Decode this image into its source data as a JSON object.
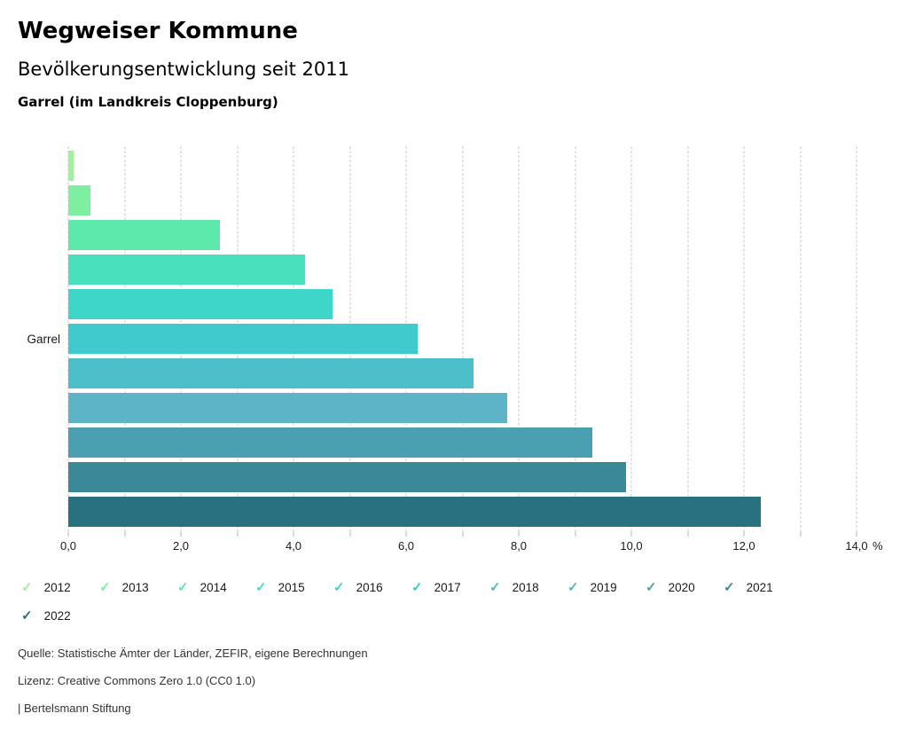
{
  "header": {
    "title": "Wegweiser Kommune",
    "subtitle": "Bevölkerungsentwicklung seit 2011",
    "region": "Garrel (im Landkreis Cloppenburg)"
  },
  "chart_data": {
    "type": "bar",
    "orientation": "horizontal",
    "category_label": "Garrel",
    "unit": "%",
    "grid": true,
    "legend_position": "bottom",
    "axis": {
      "min": 0,
      "max": 14,
      "grid_step": 1,
      "label_step": 2,
      "tick_labels": [
        "0,0",
        "2,0",
        "4,0",
        "6,0",
        "8,0",
        "10,0",
        "12,0",
        "14,0"
      ]
    },
    "series": [
      {
        "year": "2012",
        "value": 0.1,
        "color": "#a1f19b"
      },
      {
        "year": "2013",
        "value": 0.4,
        "color": "#7eef9f"
      },
      {
        "year": "2014",
        "value": 2.7,
        "color": "#5de9ac"
      },
      {
        "year": "2015",
        "value": 4.2,
        "color": "#49e0bd"
      },
      {
        "year": "2016",
        "value": 4.7,
        "color": "#3ed6c8"
      },
      {
        "year": "2017",
        "value": 6.2,
        "color": "#41cacd"
      },
      {
        "year": "2018",
        "value": 7.2,
        "color": "#4bc0cb"
      },
      {
        "year": "2019",
        "value": 7.8,
        "color": "#5db4c6"
      },
      {
        "year": "2020",
        "value": 9.3,
        "color": "#4a9fb1"
      },
      {
        "year": "2021",
        "value": 9.9,
        "color": "#3a8998"
      },
      {
        "year": "2022",
        "value": 12.3,
        "color": "#297180"
      }
    ]
  },
  "footer": {
    "source": "Quelle: Statistische Ämter der Länder, ZEFIR, eigene Berechnungen",
    "license": "Lizenz: Creative Commons Zero 1.0 (CC0 1.0)",
    "attribution": "| Bertelsmann Stiftung"
  }
}
